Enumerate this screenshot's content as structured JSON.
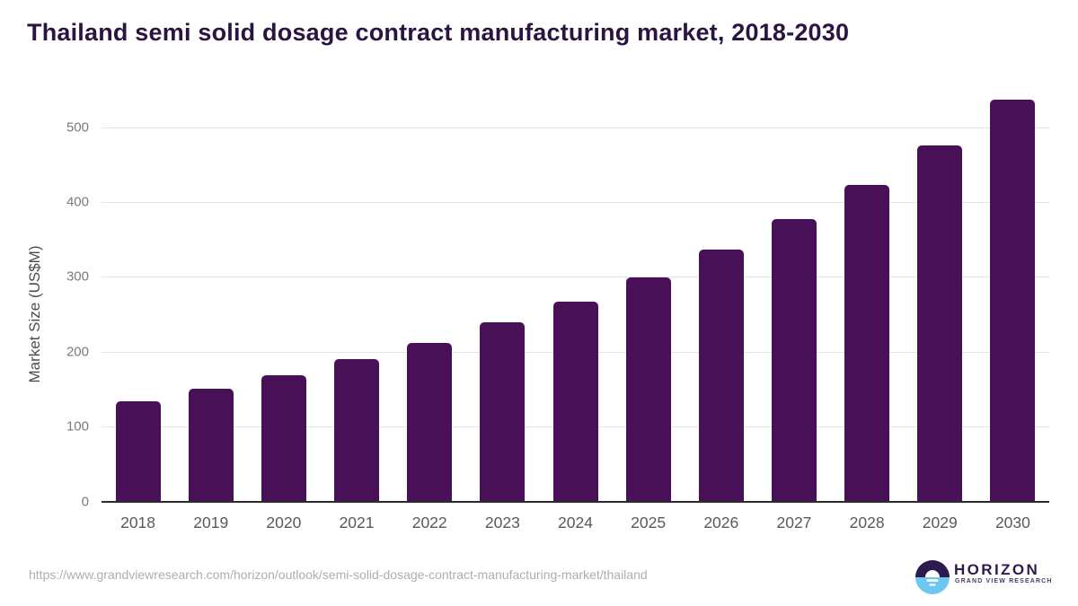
{
  "title": "Thailand semi solid dosage contract manufacturing market, 2018-2030",
  "chart_data": {
    "type": "bar",
    "categories": [
      "2018",
      "2019",
      "2020",
      "2021",
      "2022",
      "2023",
      "2024",
      "2025",
      "2026",
      "2027",
      "2028",
      "2029",
      "2030"
    ],
    "values": [
      134,
      150,
      168,
      190,
      212,
      239,
      267,
      299,
      336,
      377,
      423,
      476,
      536
    ],
    "title": "Thailand semi solid dosage contract manufacturing market, 2018-2030",
    "xlabel": "",
    "ylabel": "Market Size (US$M)",
    "ylim": [
      0,
      550
    ],
    "yticks": [
      0,
      100,
      200,
      300,
      400,
      500
    ],
    "grid": true,
    "legend": "none",
    "bar_color": "#481057"
  },
  "colors": {
    "title": "#2b1442",
    "bar": "#481057",
    "gridline": "#e5e5e5",
    "axis_line": "#2b2b2b",
    "tick_label": "#7a7a7a",
    "x_label": "#595959",
    "url_text": "#aeaeae",
    "logo_purple": "#2d1b4e",
    "logo_blue": "#6ec7f3"
  },
  "footer": {
    "source_url": "https://www.grandviewresearch.com/horizon/outlook/semi-solid-dosage-contract-manufacturing-market/thailand",
    "logo": {
      "name": "HORIZON",
      "subtitle": "GRAND VIEW RESEARCH"
    }
  }
}
